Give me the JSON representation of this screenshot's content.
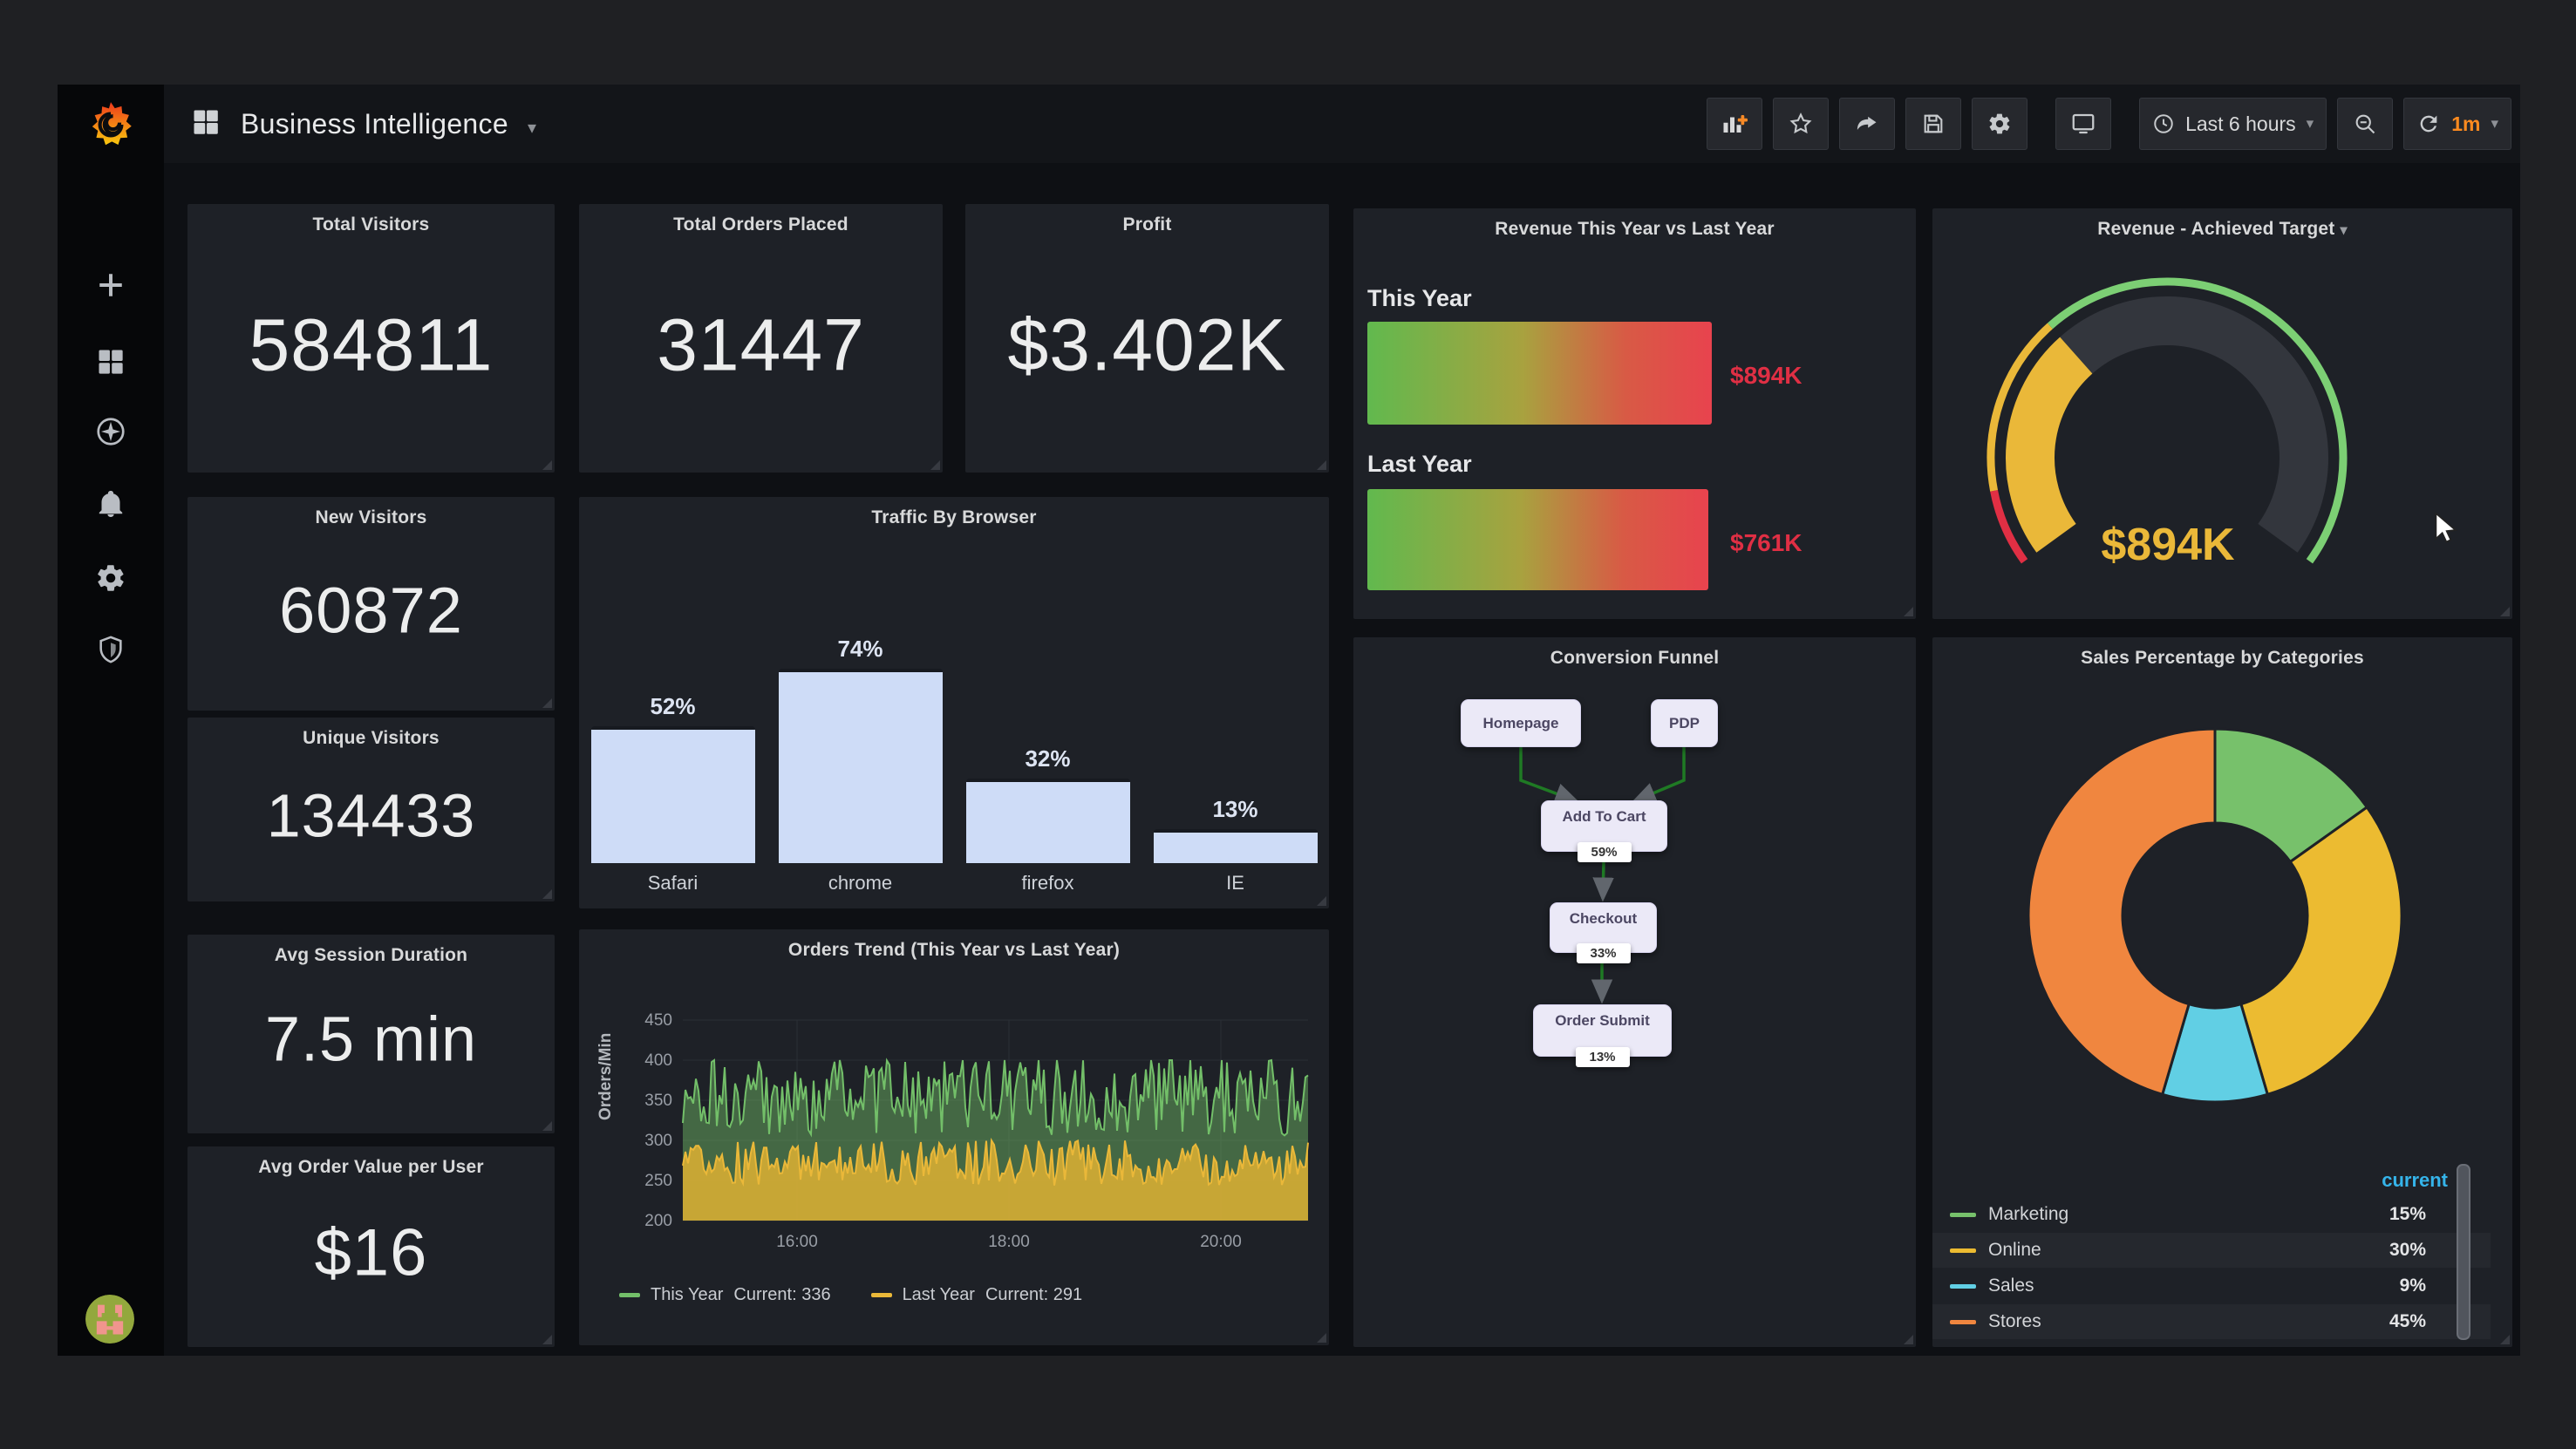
{
  "header": {
    "title": "Business Intelligence"
  },
  "toolbar": {
    "time_range": "Last 6 hours",
    "refresh_interval": "1m",
    "icons": [
      "add-panel-icon",
      "star-icon",
      "share-icon",
      "save-icon",
      "settings-gear-icon",
      "tv-mode-icon",
      "clock-icon",
      "zoom-out-icon",
      "refresh-icon"
    ]
  },
  "sidebar": {
    "items": [
      "grafana-logo",
      "create-plus",
      "dashboards",
      "explore",
      "alerting-bell",
      "configuration-gear",
      "server-admin-shield",
      "user-avatar"
    ]
  },
  "panels": {
    "stats": [
      {
        "title": "Total Visitors",
        "value": "584811"
      },
      {
        "title": "Total Orders Placed",
        "value": "31447"
      },
      {
        "title": "Profit",
        "value": "$3.402K"
      },
      {
        "title": "New Visitors",
        "value": "60872"
      },
      {
        "title": "Unique Visitors",
        "value": "134433"
      },
      {
        "title": "Avg Session Duration",
        "value": "7.5 min"
      },
      {
        "title": "Avg Order Value per User",
        "value": "$16"
      }
    ],
    "funnel": {
      "title": "Conversion Funnel",
      "nodes": [
        {
          "label": "Homepage",
          "pct": ""
        },
        {
          "label": "PDP",
          "pct": ""
        },
        {
          "label": "Add To Cart",
          "pct": "59%"
        },
        {
          "label": "Checkout",
          "pct": "33%"
        },
        {
          "label": "Order Submit",
          "pct": "13%"
        }
      ]
    }
  },
  "chart_data": [
    {
      "id": "traffic_by_browser",
      "type": "bar",
      "title": "Traffic By Browser",
      "categories": [
        "Safari",
        "chrome",
        "firefox",
        "IE"
      ],
      "values": [
        52,
        74,
        32,
        13
      ],
      "value_labels": [
        "52%",
        "74%",
        "32%",
        "13%"
      ],
      "unit": "%",
      "bar_color": "#cedcf7",
      "ylim": [
        0,
        100
      ],
      "grid": false,
      "legend": "none"
    },
    {
      "id": "orders_trend",
      "type": "line",
      "title": "Orders Trend (This Year vs Last Year)",
      "ylabel": "Orders/Min",
      "xlabel": "",
      "ylim": [
        200,
        450
      ],
      "yticks": [
        200,
        250,
        300,
        350,
        400,
        450
      ],
      "xticks": [
        "16:00",
        "18:00",
        "20:00"
      ],
      "grid": true,
      "legend_position": "bottom",
      "series": [
        {
          "name": "This Year",
          "color": "#73bf69",
          "fill": "rgba(115,191,105,0.45)",
          "current": 336,
          "current_label": "Current: 336",
          "value_range": [
            305,
            400
          ]
        },
        {
          "name": "Last Year",
          "color": "#eab839",
          "fill": "rgba(222,178,50,0.85)",
          "current": 291,
          "current_label": "Current: 291",
          "value_range": [
            243,
            300
          ]
        }
      ]
    },
    {
      "id": "revenue_this_year_vs_last_year",
      "type": "bar",
      "orientation": "horizontal",
      "title": "Revenue This Year vs Last Year",
      "categories": [
        "This Year",
        "Last Year"
      ],
      "values": [
        894,
        761
      ],
      "value_labels": [
        "$894K",
        "$761K"
      ],
      "value_color": "#e02f44",
      "bar_fractions": [
        1.0,
        0.99
      ],
      "bar_gradient": [
        "#61b94e",
        "#e8434e"
      ]
    },
    {
      "id": "revenue_achieved_target",
      "type": "gauge",
      "title": "Revenue - Achieved Target",
      "value_label": "$894K",
      "value_color": "#eab839",
      "fill_fraction": 0.335,
      "arc_degrees": 252,
      "thresholds": [
        {
          "color": "#e02f44",
          "to": 0.1
        },
        {
          "color": "#eab839",
          "to": 0.335
        },
        {
          "color": "#7ccf74",
          "to": 1.0
        }
      ]
    },
    {
      "id": "sales_percentage_by_categories",
      "type": "pie",
      "title": "Sales Percentage by Categories",
      "legend_header": "current",
      "segments": [
        {
          "label": "Marketing",
          "value": 15,
          "value_label": "15%",
          "color": "#77c16b"
        },
        {
          "label": "Online",
          "value": 30,
          "value_label": "30%",
          "color": "#ecbb31"
        },
        {
          "label": "Sales",
          "value": 9,
          "value_label": "9%",
          "color": "#61cfe4"
        },
        {
          "label": "Stores",
          "value": 45,
          "value_label": "45%",
          "color": "#f0863f"
        }
      ]
    }
  ]
}
